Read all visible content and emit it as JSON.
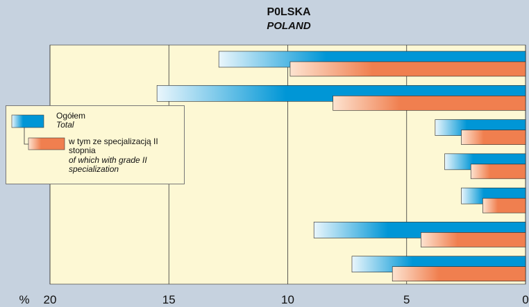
{
  "chart_data": {
    "type": "bar",
    "orientation": "horizontal",
    "title": "P0LSKA",
    "subtitle": "POLAND",
    "x_label": "%",
    "categories": [
      null,
      null,
      null,
      null,
      null,
      null,
      null
    ],
    "series": [
      {
        "name": "Ogółem",
        "name_en": "Total",
        "color": "#0096d6",
        "values": [
          12.9,
          15.5,
          3.8,
          3.4,
          2.7,
          8.9,
          7.3
        ]
      },
      {
        "name": "w tym ze specjalizacją II stopnia",
        "name_en": "of which with grade II specialization",
        "color": "#f07f4f",
        "values": [
          9.9,
          8.1,
          2.7,
          2.3,
          1.8,
          4.4,
          5.6
        ]
      }
    ],
    "xlim": [
      20,
      0
    ],
    "xticks": [
      20,
      15,
      10,
      5,
      0
    ],
    "grid": true
  }
}
